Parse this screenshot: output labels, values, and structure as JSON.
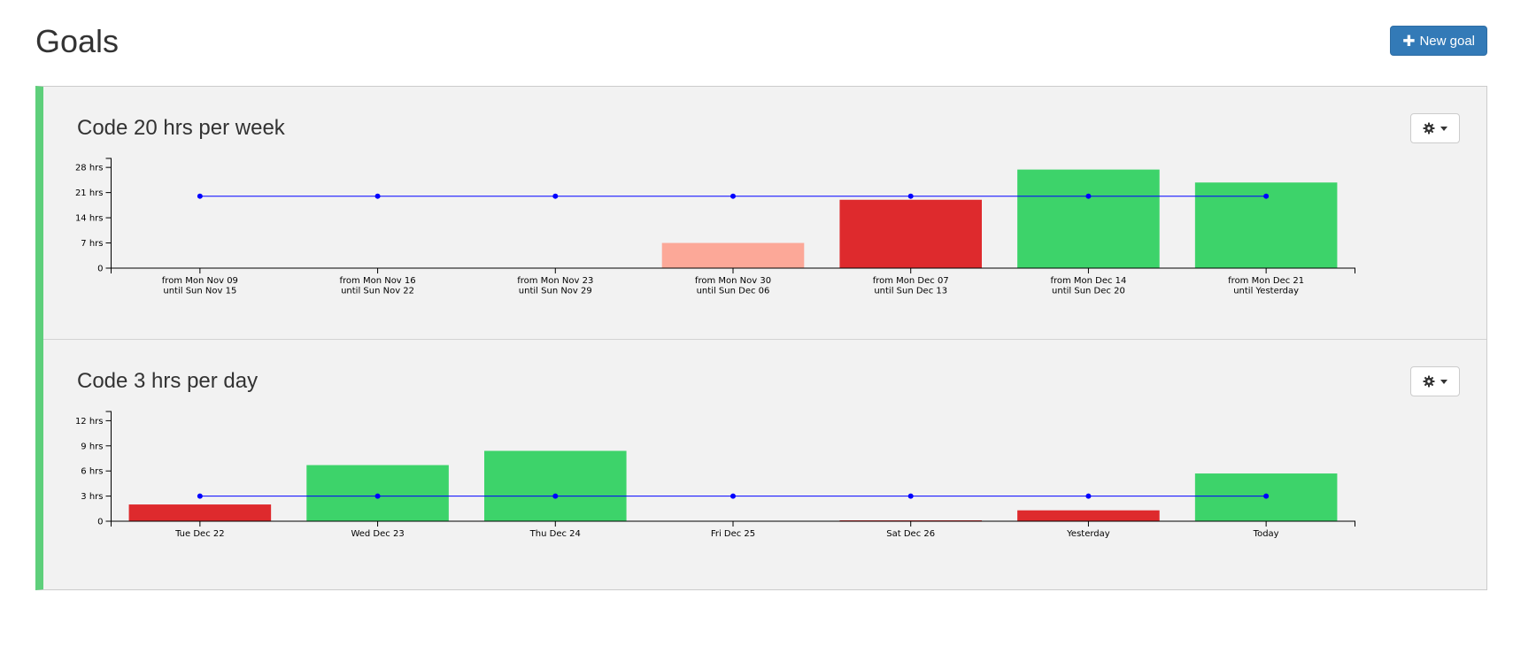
{
  "page": {
    "title": "Goals",
    "new_goal_label": "New goal"
  },
  "colors": {
    "panel_accent": "#5ecf7b",
    "success": "#3dd36a",
    "fail": "#de2a2d",
    "partial": "#fca898",
    "target_line": "#0000ff",
    "primary_button": "#337ab7"
  },
  "goals": [
    {
      "title": "Code 20 hrs per week",
      "settings_icon": "gear-icon"
    },
    {
      "title": "Code 3 hrs per day",
      "settings_icon": "gear-icon"
    }
  ],
  "chart_data": [
    {
      "type": "bar",
      "title": "Code 20 hrs per week",
      "categories": [
        [
          "from Mon Nov 09",
          "until Sun Nov 15"
        ],
        [
          "from Mon Nov 16",
          "until Sun Nov 22"
        ],
        [
          "from Mon Nov 23",
          "until Sun Nov 29"
        ],
        [
          "from Mon Nov 30",
          "until Sun Dec 06"
        ],
        [
          "from Mon Dec 07",
          "until Sun Dec 13"
        ],
        [
          "from Mon Dec 14",
          "until Sun Dec 20"
        ],
        [
          "from Mon Dec 21",
          "until Yesterday"
        ]
      ],
      "values": [
        0,
        0,
        0,
        7,
        19,
        27.4,
        23.8
      ],
      "bar_status": [
        "none",
        "none",
        "none",
        "partial",
        "fail",
        "success",
        "success"
      ],
      "target": 20,
      "yticks": [
        0,
        7,
        14,
        21,
        28
      ],
      "ytick_labels": [
        "0",
        "7 hrs",
        "14 hrs",
        "21 hrs",
        "28 hrs"
      ],
      "ylim": [
        0,
        30.5
      ],
      "grid": false,
      "legend": "none"
    },
    {
      "type": "bar",
      "title": "Code 3 hrs per day",
      "categories": [
        [
          "Tue Dec 22"
        ],
        [
          "Wed Dec 23"
        ],
        [
          "Thu Dec 24"
        ],
        [
          "Fri Dec 25"
        ],
        [
          "Sat Dec 26"
        ],
        [
          "Yesterday"
        ],
        [
          "Today"
        ]
      ],
      "values": [
        2,
        6.7,
        8.4,
        0,
        0.1,
        1.3,
        5.7
      ],
      "bar_status": [
        "fail",
        "success",
        "success",
        "none",
        "fail",
        "fail",
        "success"
      ],
      "target": 3,
      "yticks": [
        0,
        3,
        6,
        9,
        12
      ],
      "ytick_labels": [
        "0",
        "3 hrs",
        "6 hrs",
        "9 hrs",
        "12 hrs"
      ],
      "ylim": [
        0,
        13.1
      ],
      "grid": false,
      "legend": "none"
    }
  ]
}
